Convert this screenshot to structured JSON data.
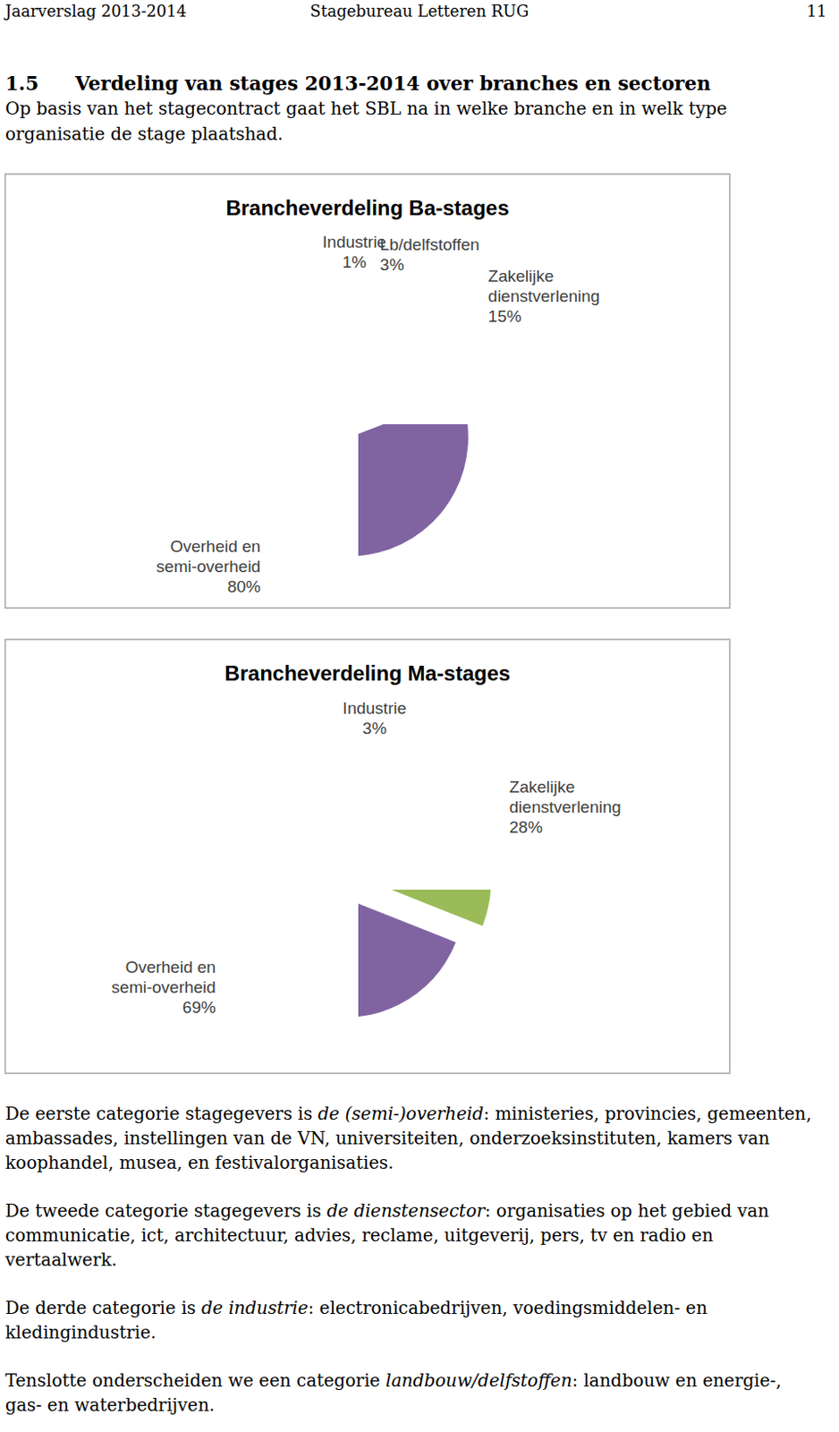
{
  "header": {
    "left": "Jaarverslag 2013-2014",
    "center": "Stagebureau Letteren RUG",
    "page": 11
  },
  "section": {
    "number": "1.5",
    "title": "Verdeling van stages 2013-2014 over branches en sectoren",
    "intro": "Op basis van het stagecontract gaat het SBL na in welke branche en in welk type organisatie de stage plaatshad."
  },
  "chart_data": [
    {
      "type": "pie",
      "title": "Brancheverdeling Ba-stages",
      "categories": [
        "Industrie",
        "Lb/delfstoffen",
        "Zakelijke dienstverlening",
        "Overheid en semi-overheid"
      ],
      "values": [
        1,
        3,
        15,
        80
      ],
      "value_labels": [
        "1%",
        "3%",
        "15%",
        "80%"
      ],
      "colors": [
        "#4f81bd",
        "#c00000",
        "#9bbb59",
        "#8064a2"
      ],
      "data_labels": true
    },
    {
      "type": "pie",
      "title": "Brancheverdeling Ma-stages",
      "categories": [
        "Industrie",
        "Zakelijke dienstverlening",
        "Overheid en semi-overheid"
      ],
      "values": [
        3,
        28,
        69
      ],
      "value_labels": [
        "3%",
        "28%",
        "69%"
      ],
      "colors": [
        "#4f81bd",
        "#9bbb59",
        "#8064a2"
      ],
      "data_labels": true
    }
  ],
  "paragraphs": [
    {
      "lead": "De eerste categorie stagegevers is ",
      "term": "de (semi-)overheid",
      "rest": ": ministeries, provincies, gemeenten, ambassades, instellingen van de VN, universiteiten, onderzoeksinstituten, kamers van koophandel, musea, en festivalorganisaties."
    },
    {
      "lead": "De tweede categorie stagegevers is ",
      "term": "de dienstensector",
      "rest": ": organisaties op het gebied van communicatie, ict, architectuur, advies, reclame, uitgeverij, pers, tv en radio en vertaalwerk."
    },
    {
      "lead": "De derde categorie is ",
      "term": "de industrie",
      "rest": ": electronicabedrijven, voedingsmiddelen- en kledingindustrie."
    },
    {
      "lead": "Tenslotte onderscheiden we een categorie ",
      "term": "landbouw/delfstoffen",
      "rest": ": landbouw en energie-, gas- en waterbedrijven."
    }
  ]
}
